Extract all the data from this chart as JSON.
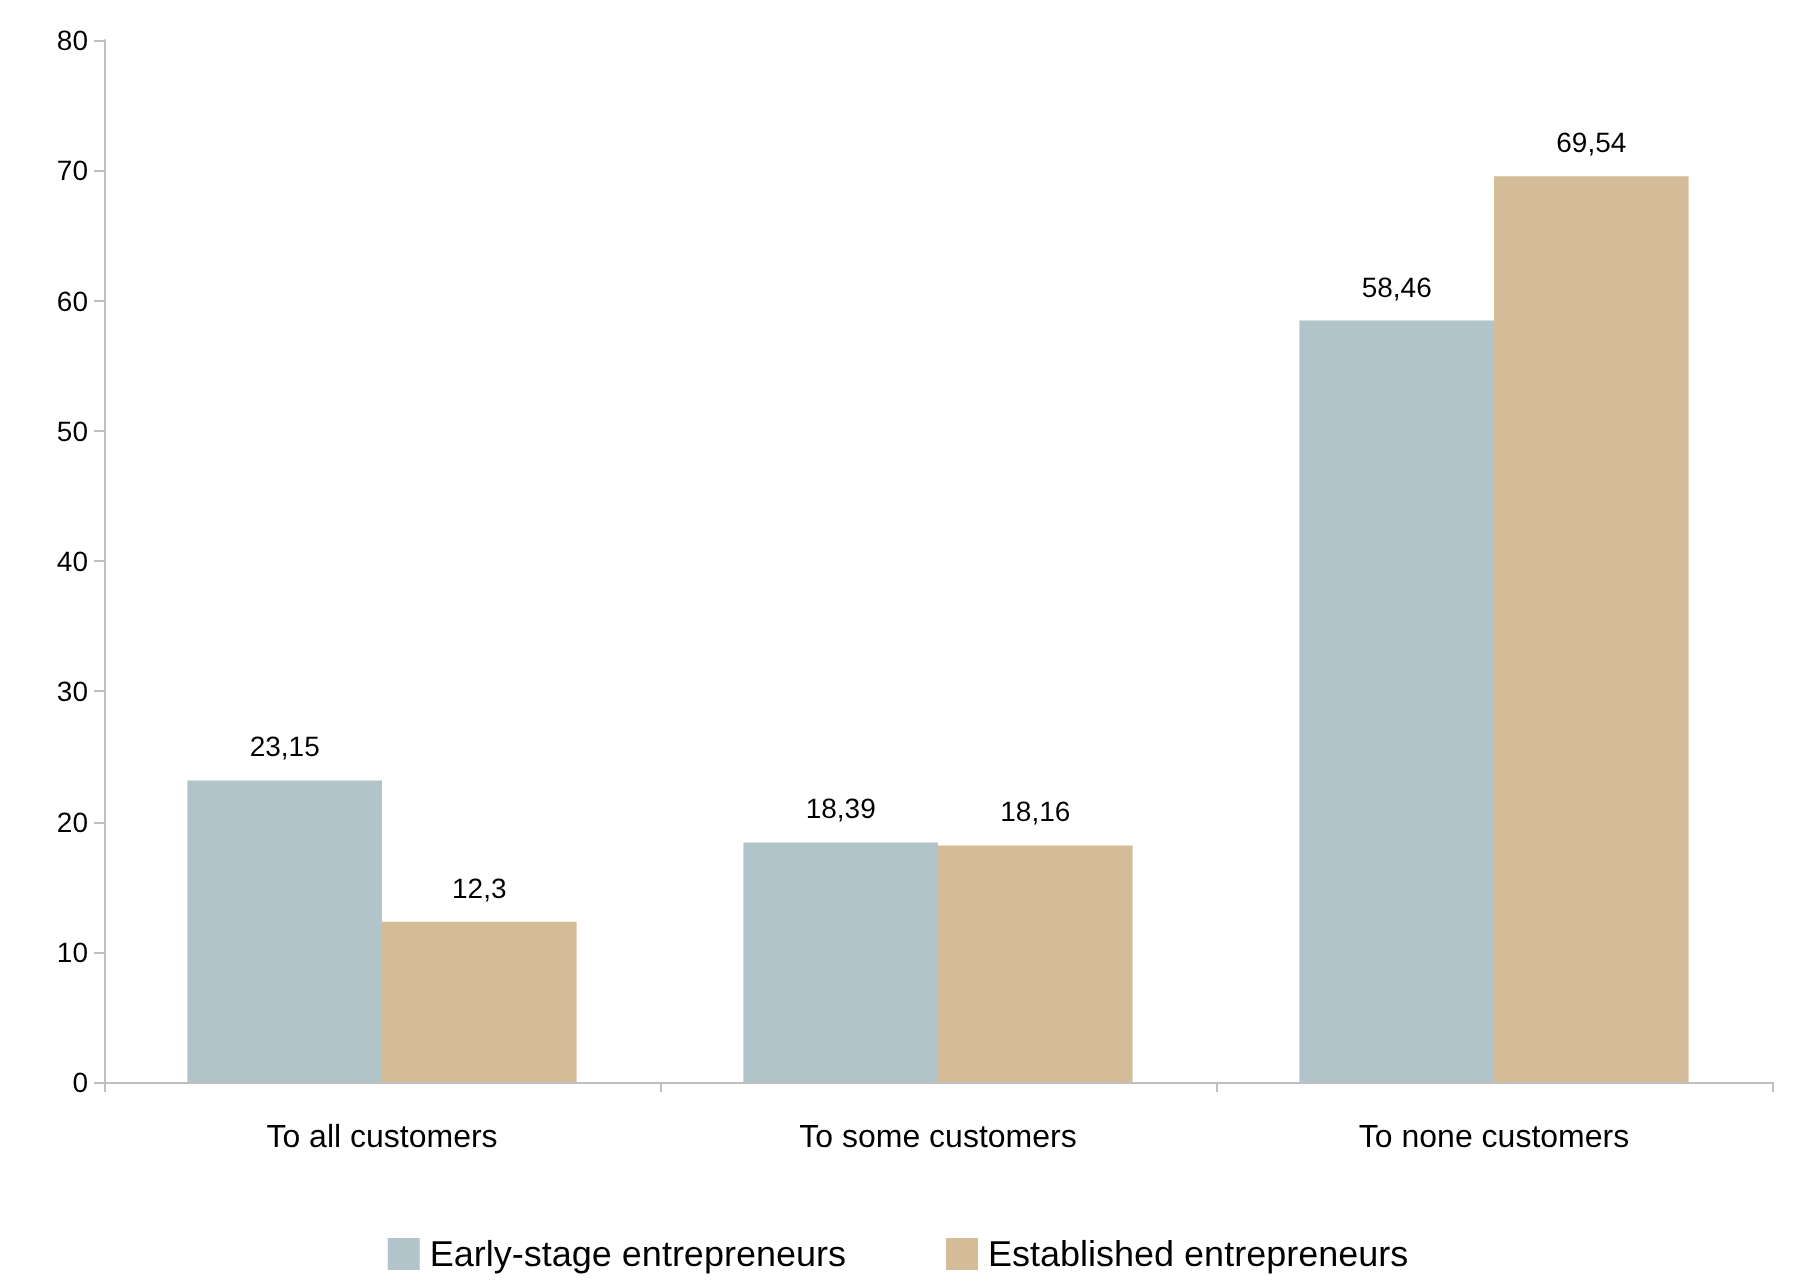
{
  "chart_data": {
    "type": "bar",
    "categories": [
      "To all customers",
      "To some customers",
      "To none customers"
    ],
    "series": [
      {
        "name": "Early-stage entrepreneurs",
        "color": "#b0c4c9",
        "values": [
          23.15,
          18.39,
          58.46
        ],
        "value_labels": [
          "23,15",
          "18,39",
          "58,46"
        ]
      },
      {
        "name": "Established entrepreneurs",
        "color": "#d4bc99",
        "values": [
          12.3,
          18.16,
          69.54
        ],
        "value_labels": [
          "12,3",
          "18,16",
          "69,54"
        ]
      }
    ],
    "ylim": [
      0,
      80
    ],
    "yticks": [
      0,
      10,
      20,
      30,
      40,
      50,
      60,
      70,
      80
    ],
    "grid": false,
    "legend": "bottom"
  }
}
